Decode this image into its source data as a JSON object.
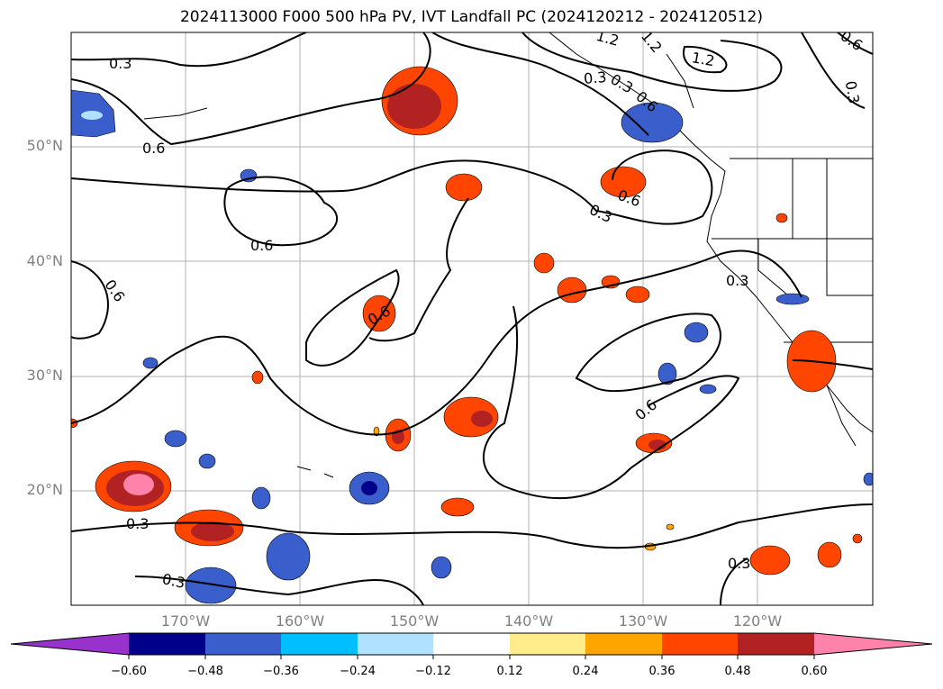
{
  "title": "2024113000 F000 500 hPa PV, IVT Landfall PC (2024120212 - 2024120512)",
  "map": {
    "lat_labels": [
      "50°N",
      "40°N",
      "30°N",
      "20°N"
    ],
    "lon_labels": [
      "170°W",
      "160°W",
      "150°W",
      "140°W",
      "130°W",
      "120°W"
    ],
    "lat_range": [
      10,
      60
    ],
    "lon_range": [
      -180,
      -110
    ],
    "grid": true,
    "contour_labels": [
      "0.3",
      "0.6",
      "0.6",
      "0.6",
      "0.6",
      "0.6",
      "0.3",
      "0.3",
      "0.6",
      "0.3",
      "0.3",
      "0.3",
      "1.2",
      "1.2",
      "1.2",
      "0.3",
      "0.6",
      "0.3",
      "0.6",
      "0.3"
    ]
  },
  "colorbar": {
    "ticks": [
      "−0.60",
      "−0.48",
      "−0.36",
      "−0.24",
      "−0.12",
      "0.12",
      "0.24",
      "0.36",
      "0.48",
      "0.60"
    ],
    "colors": [
      "#9932cc",
      "#00008b",
      "#3a5fcd",
      "#00bfff",
      "#b0e2ff",
      "#ffffff",
      "#ffec8b",
      "#ffa500",
      "#ff4500",
      "#b22222",
      "#ff82ab"
    ]
  }
}
